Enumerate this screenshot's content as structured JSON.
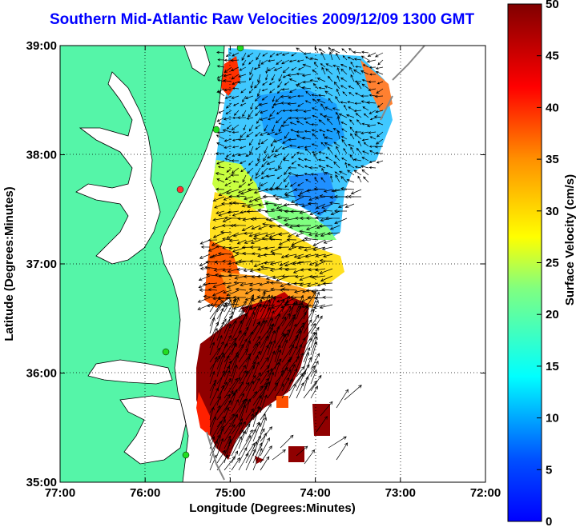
{
  "title": "Southern Mid-Atlantic Raw Velocities 2009/12/09 1300 GMT",
  "map": {
    "xlabel": "Longitude (Degrees:Minutes)",
    "ylabel": "Latitude (Degrees:Minutes)",
    "lon_range": [
      -77,
      -72
    ],
    "lat_range": [
      35,
      39
    ],
    "x_ticks": [
      {
        "value": -77,
        "label": "77:00"
      },
      {
        "value": -76,
        "label": "76:00"
      },
      {
        "value": -75,
        "label": "75:00"
      },
      {
        "value": -74,
        "label": "74:00"
      },
      {
        "value": -73,
        "label": "73:00"
      },
      {
        "value": -72,
        "label": "72:00"
      }
    ],
    "y_ticks": [
      {
        "value": 35,
        "label": "35:00"
      },
      {
        "value": 36,
        "label": "36:00"
      },
      {
        "value": 37,
        "label": "37:00"
      },
      {
        "value": 38,
        "label": "38:00"
      },
      {
        "value": 39,
        "label": "39:00"
      }
    ],
    "grid": "dotted",
    "land_color": "#55f5a8",
    "coastline_color": "#000000",
    "station_color": "#22dd22",
    "station_alt_color": "#ff3333"
  },
  "colorbar": {
    "label": "Surface Velocity (cm/s)",
    "range": [
      0,
      50
    ],
    "ticks": [
      {
        "value": 0,
        "label": "0"
      },
      {
        "value": 5,
        "label": "5"
      },
      {
        "value": 10,
        "label": "10"
      },
      {
        "value": 15,
        "label": "15"
      },
      {
        "value": 20,
        "label": "20"
      },
      {
        "value": 25,
        "label": "25"
      },
      {
        "value": 30,
        "label": "30"
      },
      {
        "value": 35,
        "label": "35"
      },
      {
        "value": 40,
        "label": "40"
      },
      {
        "value": 45,
        "label": "45"
      },
      {
        "value": 50,
        "label": "50"
      }
    ],
    "colormap": "jet"
  }
}
